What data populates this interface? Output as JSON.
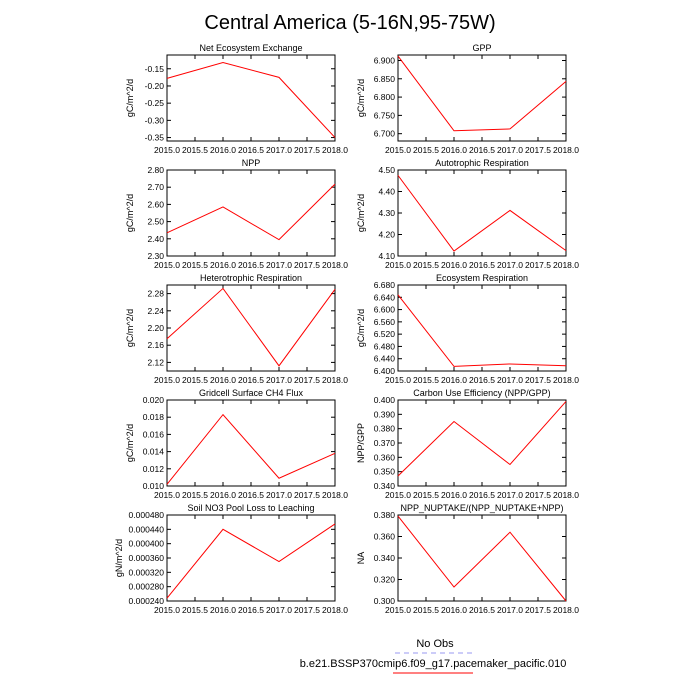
{
  "title": "Central America (5-16N,95-75W)",
  "legend": {
    "items": [
      {
        "label": "No Obs",
        "color": "#9a9af0",
        "dash": true
      },
      {
        "label": "b.e21.BSSP370cmip6.f09_g17.pacemaker_pacific.010",
        "color": "#ff0000",
        "dash": false
      }
    ]
  },
  "line_color": "#ff0000",
  "chart_data": [
    {
      "type": "line",
      "title": "Net Ecosystem Exchange",
      "ylabel": "gC/m^2/d",
      "x": [
        2015.0,
        2016.0,
        2017.0,
        2018.0
      ],
      "y": [
        -0.178,
        -0.132,
        -0.175,
        -0.35
      ],
      "xlim": [
        2015.0,
        2018.0
      ],
      "ylim": [
        -0.36,
        -0.11
      ],
      "xticks": [
        2015.0,
        2015.5,
        2016.0,
        2016.5,
        2017.0,
        2017.5,
        2018.0
      ],
      "xtick_labels": [
        "2015.0",
        "2015.5",
        "2016.0",
        "2016.5",
        "2017.0",
        "2017.5",
        "2018.0"
      ],
      "yticks": [
        -0.35,
        -0.3,
        -0.25,
        -0.2,
        -0.15
      ],
      "ytick_labels": [
        "-0.35",
        "-0.30",
        "-0.25",
        "-0.20",
        "-0.15"
      ]
    },
    {
      "type": "line",
      "title": "GPP",
      "ylabel": "gC/m^2/d",
      "x": [
        2015.0,
        2016.0,
        2017.0,
        2018.0
      ],
      "y": [
        6.912,
        6.708,
        6.713,
        6.843
      ],
      "xlim": [
        2015.0,
        2018.0
      ],
      "ylim": [
        6.68,
        6.915
      ],
      "xticks": [
        2015.0,
        2015.5,
        2016.0,
        2016.5,
        2017.0,
        2017.5,
        2018.0
      ],
      "xtick_labels": [
        "2015.0",
        "2015.5",
        "2016.0",
        "2016.5",
        "2017.0",
        "2017.5",
        "2018.0"
      ],
      "yticks": [
        6.7,
        6.75,
        6.8,
        6.85,
        6.9
      ],
      "ytick_labels": [
        "6.700",
        "6.750",
        "6.800",
        "6.850",
        "6.900"
      ]
    },
    {
      "type": "line",
      "title": "NPP",
      "ylabel": "gC/m^2/d",
      "x": [
        2015.0,
        2016.0,
        2017.0,
        2018.0
      ],
      "y": [
        2.435,
        2.585,
        2.395,
        2.718
      ],
      "xlim": [
        2015.0,
        2018.0
      ],
      "ylim": [
        2.3,
        2.8
      ],
      "xticks": [
        2015.0,
        2015.5,
        2016.0,
        2016.5,
        2017.0,
        2017.5,
        2018.0
      ],
      "xtick_labels": [
        "2015.0",
        "2015.5",
        "2016.0",
        "2016.5",
        "2017.0",
        "2017.5",
        "2018.0"
      ],
      "yticks": [
        2.3,
        2.4,
        2.5,
        2.6,
        2.7,
        2.8
      ],
      "ytick_labels": [
        "2.30",
        "2.40",
        "2.50",
        "2.60",
        "2.70",
        "2.80"
      ]
    },
    {
      "type": "line",
      "title": "Autotrophic Respiration",
      "ylabel": "gC/m^2/d",
      "x": [
        2015.0,
        2016.0,
        2017.0,
        2018.0
      ],
      "y": [
        4.475,
        4.123,
        4.312,
        4.125
      ],
      "xlim": [
        2015.0,
        2018.0
      ],
      "ylim": [
        4.1,
        4.5
      ],
      "xticks": [
        2015.0,
        2015.5,
        2016.0,
        2016.5,
        2017.0,
        2017.5,
        2018.0
      ],
      "xtick_labels": [
        "2015.0",
        "2015.5",
        "2016.0",
        "2016.5",
        "2017.0",
        "2017.5",
        "2018.0"
      ],
      "yticks": [
        4.1,
        4.2,
        4.3,
        4.4,
        4.5
      ],
      "ytick_labels": [
        "4.10",
        "4.20",
        "4.30",
        "4.40",
        "4.50"
      ]
    },
    {
      "type": "line",
      "title": "Heterotrophic Respiration",
      "ylabel": "gC/m^2/d",
      "x": [
        2015.0,
        2016.0,
        2017.0,
        2018.0
      ],
      "y": [
        2.175,
        2.292,
        2.112,
        2.29
      ],
      "xlim": [
        2015.0,
        2018.0
      ],
      "ylim": [
        2.1,
        2.3
      ],
      "xticks": [
        2015.0,
        2015.5,
        2016.0,
        2016.5,
        2017.0,
        2017.5,
        2018.0
      ],
      "xtick_labels": [
        "2015.0",
        "2015.5",
        "2016.0",
        "2016.5",
        "2017.0",
        "2017.5",
        "2018.0"
      ],
      "yticks": [
        2.12,
        2.16,
        2.2,
        2.24,
        2.28
      ],
      "ytick_labels": [
        "2.12",
        "2.16",
        "2.20",
        "2.24",
        "2.28"
      ]
    },
    {
      "type": "line",
      "title": "Ecosystem Respiration",
      "ylabel": "gC/m^2/d",
      "x": [
        2015.0,
        2016.0,
        2017.0,
        2018.0
      ],
      "y": [
        6.648,
        6.415,
        6.423,
        6.417
      ],
      "xlim": [
        2015.0,
        2018.0
      ],
      "ylim": [
        6.4,
        6.68
      ],
      "xticks": [
        2015.0,
        2015.5,
        2016.0,
        2016.5,
        2017.0,
        2017.5,
        2018.0
      ],
      "xtick_labels": [
        "2015.0",
        "2015.5",
        "2016.0",
        "2016.5",
        "2017.0",
        "2017.5",
        "2018.0"
      ],
      "yticks": [
        6.4,
        6.44,
        6.48,
        6.52,
        6.56,
        6.6,
        6.64,
        6.68
      ],
      "ytick_labels": [
        "6.400",
        "6.440",
        "6.480",
        "6.520",
        "6.560",
        "6.600",
        "6.640",
        "6.680"
      ]
    },
    {
      "type": "line",
      "title": "Gridcell Surface CH4 Flux",
      "ylabel": "gC/m^2/d",
      "x": [
        2015.0,
        2016.0,
        2017.0,
        2018.0
      ],
      "y": [
        0.0102,
        0.0183,
        0.0109,
        0.0138
      ],
      "xlim": [
        2015.0,
        2018.0
      ],
      "ylim": [
        0.01,
        0.02
      ],
      "xticks": [
        2015.0,
        2015.5,
        2016.0,
        2016.5,
        2017.0,
        2017.5,
        2018.0
      ],
      "xtick_labels": [
        "2015.0",
        "2015.5",
        "2016.0",
        "2016.5",
        "2017.0",
        "2017.5",
        "2018.0"
      ],
      "yticks": [
        0.01,
        0.012,
        0.014,
        0.016,
        0.018,
        0.02
      ],
      "ytick_labels": [
        "0.010",
        "0.012",
        "0.014",
        "0.016",
        "0.018",
        "0.020"
      ]
    },
    {
      "type": "line",
      "title": "Carbon Use Efficiency (NPP/GPP)",
      "ylabel": "NPP/GPP",
      "x": [
        2015.0,
        2016.0,
        2017.0,
        2018.0
      ],
      "y": [
        0.347,
        0.385,
        0.355,
        0.399
      ],
      "xlim": [
        2015.0,
        2018.0
      ],
      "ylim": [
        0.34,
        0.4
      ],
      "xticks": [
        2015.0,
        2015.5,
        2016.0,
        2016.5,
        2017.0,
        2017.5,
        2018.0
      ],
      "xtick_labels": [
        "2015.0",
        "2015.5",
        "2016.0",
        "2016.5",
        "2017.0",
        "2017.5",
        "2018.0"
      ],
      "yticks": [
        0.34,
        0.35,
        0.36,
        0.37,
        0.38,
        0.39,
        0.4
      ],
      "ytick_labels": [
        "0.340",
        "0.350",
        "0.360",
        "0.370",
        "0.380",
        "0.390",
        "0.400"
      ]
    },
    {
      "type": "line",
      "title": "Soil NO3 Pool Loss to Leaching",
      "ylabel": "gN/m^2/d",
      "x": [
        2015.0,
        2016.0,
        2017.0,
        2018.0
      ],
      "y": [
        0.000248,
        0.00044,
        0.00035,
        0.000455
      ],
      "xlim": [
        2015.0,
        2018.0
      ],
      "ylim": [
        0.00024,
        0.00048
      ],
      "xticks": [
        2015.0,
        2015.5,
        2016.0,
        2016.5,
        2017.0,
        2017.5,
        2018.0
      ],
      "xtick_labels": [
        "2015.0",
        "2015.5",
        "2016.0",
        "2016.5",
        "2017.0",
        "2017.5",
        "2018.0"
      ],
      "yticks": [
        0.00024,
        0.00028,
        0.00032,
        0.00036,
        0.0004,
        0.00044,
        0.00048
      ],
      "ytick_labels": [
        "0.000240",
        "0.000280",
        "0.000320",
        "0.000360",
        "0.000400",
        "0.000440",
        "0.000480"
      ]
    },
    {
      "type": "line",
      "title": "NPP_NUPTAKE/(NPP_NUPTAKE+NPP)",
      "ylabel": "NA",
      "x": [
        2015.0,
        2016.0,
        2017.0,
        2018.0
      ],
      "y": [
        0.379,
        0.313,
        0.364,
        0.3
      ],
      "xlim": [
        2015.0,
        2018.0
      ],
      "ylim": [
        0.3,
        0.38
      ],
      "xticks": [
        2015.0,
        2015.5,
        2016.0,
        2016.5,
        2017.0,
        2017.5,
        2018.0
      ],
      "xtick_labels": [
        "2015.0",
        "2015.5",
        "2016.0",
        "2016.5",
        "2017.0",
        "2017.5",
        "2018.0"
      ],
      "yticks": [
        0.3,
        0.32,
        0.34,
        0.36,
        0.38
      ],
      "ytick_labels": [
        "0.300",
        "0.320",
        "0.340",
        "0.360",
        "0.380"
      ]
    }
  ]
}
